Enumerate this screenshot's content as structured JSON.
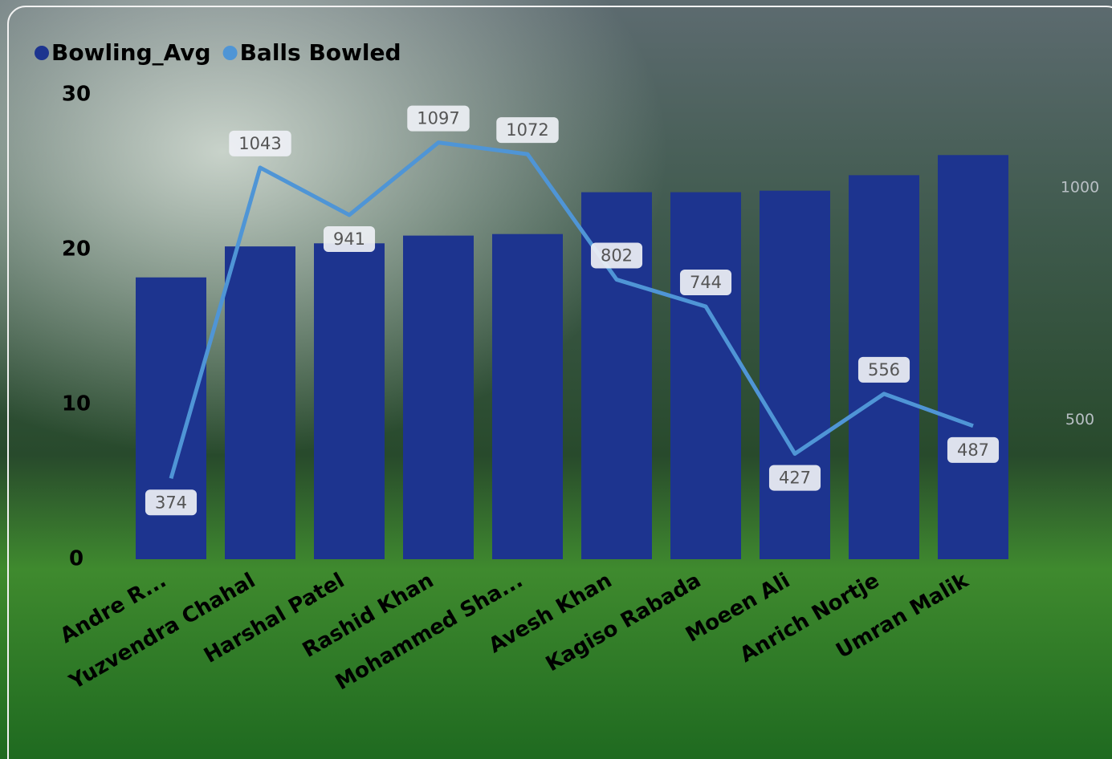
{
  "chart_data": {
    "type": "bar-line",
    "categories": [
      "Andre R...",
      "Yuzvendra Chahal",
      "Harshal Patel",
      "Rashid Khan",
      "Mohammed Sha...",
      "Avesh Khan",
      "Kagiso Rabada",
      "Moeen Ali",
      "Anrich Nortje",
      "Umran Malik"
    ],
    "series": [
      {
        "name": "Bowling_Avg",
        "color": "#1d348f",
        "type": "bar",
        "values": [
          18.2,
          20.2,
          20.4,
          20.9,
          21.0,
          23.7,
          23.7,
          23.8,
          24.8,
          26.1
        ]
      },
      {
        "name": "Balls Bowled",
        "color": "#4f95d6",
        "type": "line",
        "axis": "y2",
        "values": [
          374,
          1043,
          941,
          1097,
          1072,
          802,
          744,
          427,
          556,
          487
        ]
      }
    ],
    "ylim": [
      0,
      30
    ],
    "yticks": [
      0,
      10,
      20,
      30
    ],
    "y2lim": [
      200,
      1200
    ],
    "y2ticks": [
      500,
      1000
    ],
    "legend": "top-left"
  }
}
